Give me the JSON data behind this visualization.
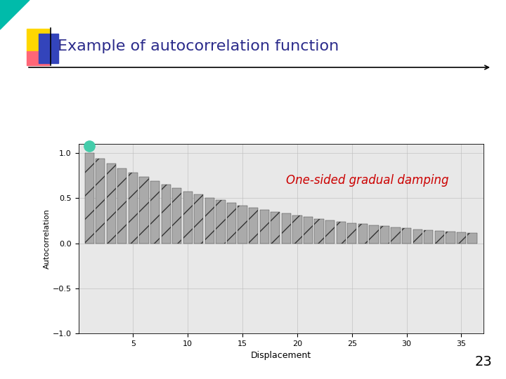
{
  "title": "Example of autocorrelation function",
  "title_color": "#2B2B8B",
  "annotation_text": "One-sided gradual damping",
  "annotation_color": "#CC0000",
  "ylabel": "Autocorrelation",
  "xlabel": "Displacement",
  "xlim": [
    0,
    37
  ],
  "ylim": [
    -1.0,
    1.1
  ],
  "yticks": [
    -1.0,
    -0.5,
    0.0,
    0.5,
    1.0
  ],
  "xticks": [
    5,
    10,
    15,
    20,
    25,
    30,
    35
  ],
  "bar_color": "#AAAAAA",
  "bar_edgecolor": "#333333",
  "n_bars": 36,
  "decay_rate": 0.94,
  "background_color": "#FFFFFF",
  "plot_bg": "#E8E8E8",
  "page_number": "23",
  "circle_color": "#44CCAA",
  "square1_color": "#FFD700",
  "square2_color": "#FF6677",
  "square3_color": "#3344BB",
  "triangle_color": "#00BBAA",
  "title_fontsize": 16,
  "annotation_fontsize": 12
}
